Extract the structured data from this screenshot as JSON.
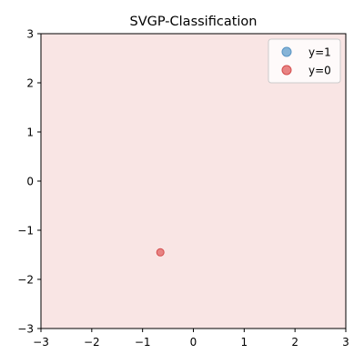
{
  "chart_data": {
    "type": "scatter",
    "title": "SVGP-Classification",
    "xlabel": "",
    "ylabel": "",
    "xlim": [
      -3,
      3
    ],
    "ylim": [
      -3,
      3
    ],
    "xticks": [
      -3,
      -2,
      -1,
      0,
      1,
      2,
      3
    ],
    "yticks": [
      -3,
      -2,
      -1,
      0,
      1,
      2,
      3
    ],
    "xtick_labels": [
      "−3",
      "−2",
      "−1",
      "0",
      "1",
      "2",
      "3"
    ],
    "ytick_labels": [
      "−3",
      "−2",
      "−1",
      "0",
      "1",
      "2",
      "3"
    ],
    "grid": false,
    "background_color": "#f9e5e4",
    "legend_position": "top-right",
    "series": [
      {
        "name": "y=1",
        "color": "#7fb0d5",
        "edge_color": "#5a95c4",
        "points": []
      },
      {
        "name": "y=0",
        "color": "#e77c7c",
        "edge_color": "#d44e4e",
        "points": [
          {
            "x": -0.65,
            "y": -1.45
          }
        ]
      }
    ]
  }
}
